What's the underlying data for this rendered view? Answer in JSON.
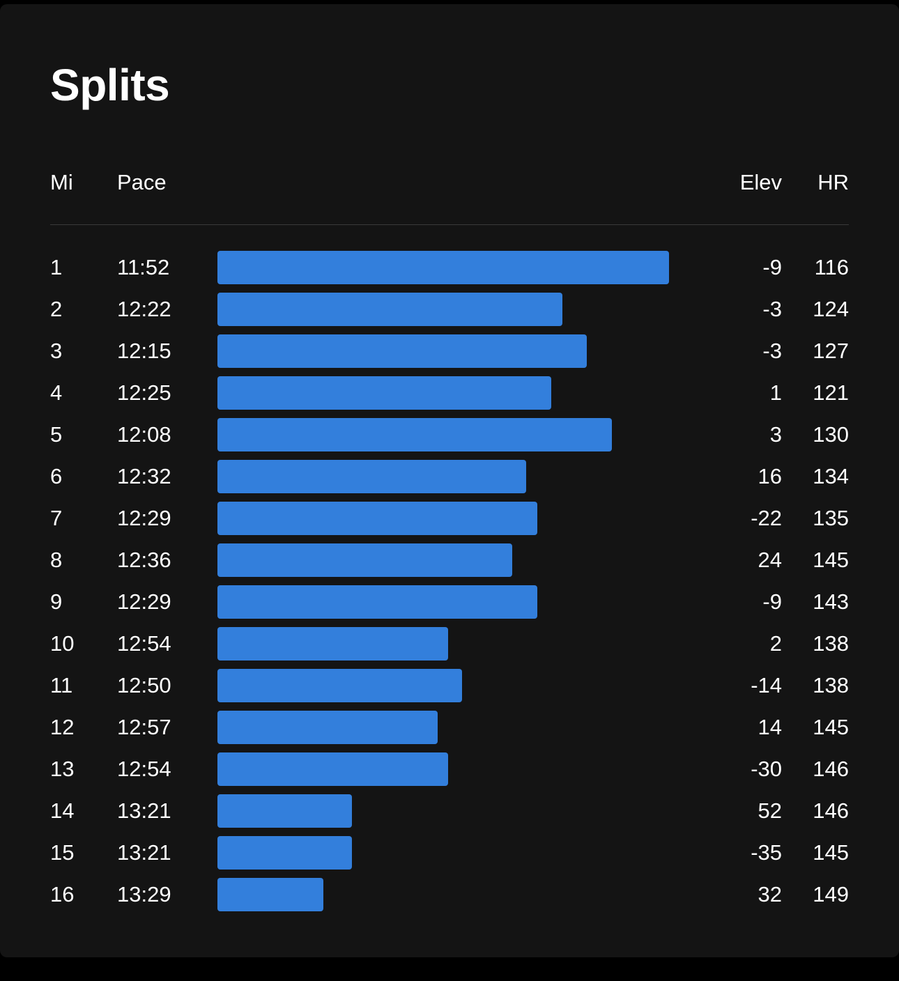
{
  "title": "Splits",
  "columns": {
    "mile": "Mi",
    "pace": "Pace",
    "elevation": "Elev",
    "heart_rate": "HR"
  },
  "colors": {
    "background": "#141414",
    "bar": "#337fdc",
    "divider": "#3a3a3a",
    "text": "#ffffff"
  },
  "splits": [
    {
      "mi": "1",
      "pace": "11:52",
      "elev": "-9",
      "hr": "116"
    },
    {
      "mi": "2",
      "pace": "12:22",
      "elev": "-3",
      "hr": "124"
    },
    {
      "mi": "3",
      "pace": "12:15",
      "elev": "-3",
      "hr": "127"
    },
    {
      "mi": "4",
      "pace": "12:25",
      "elev": "1",
      "hr": "121"
    },
    {
      "mi": "5",
      "pace": "12:08",
      "elev": "3",
      "hr": "130"
    },
    {
      "mi": "6",
      "pace": "12:32",
      "elev": "16",
      "hr": "134"
    },
    {
      "mi": "7",
      "pace": "12:29",
      "elev": "-22",
      "hr": "135"
    },
    {
      "mi": "8",
      "pace": "12:36",
      "elev": "24",
      "hr": "145"
    },
    {
      "mi": "9",
      "pace": "12:29",
      "elev": "-9",
      "hr": "143"
    },
    {
      "mi": "10",
      "pace": "12:54",
      "elev": "2",
      "hr": "138"
    },
    {
      "mi": "11",
      "pace": "12:50",
      "elev": "-14",
      "hr": "138"
    },
    {
      "mi": "12",
      "pace": "12:57",
      "elev": "14",
      "hr": "145"
    },
    {
      "mi": "13",
      "pace": "12:54",
      "elev": "-30",
      "hr": "146"
    },
    {
      "mi": "14",
      "pace": "13:21",
      "elev": "52",
      "hr": "146"
    },
    {
      "mi": "15",
      "pace": "13:21",
      "elev": "-35",
      "hr": "145"
    },
    {
      "mi": "16",
      "pace": "13:29",
      "elev": "32",
      "hr": "149"
    }
  ]
}
